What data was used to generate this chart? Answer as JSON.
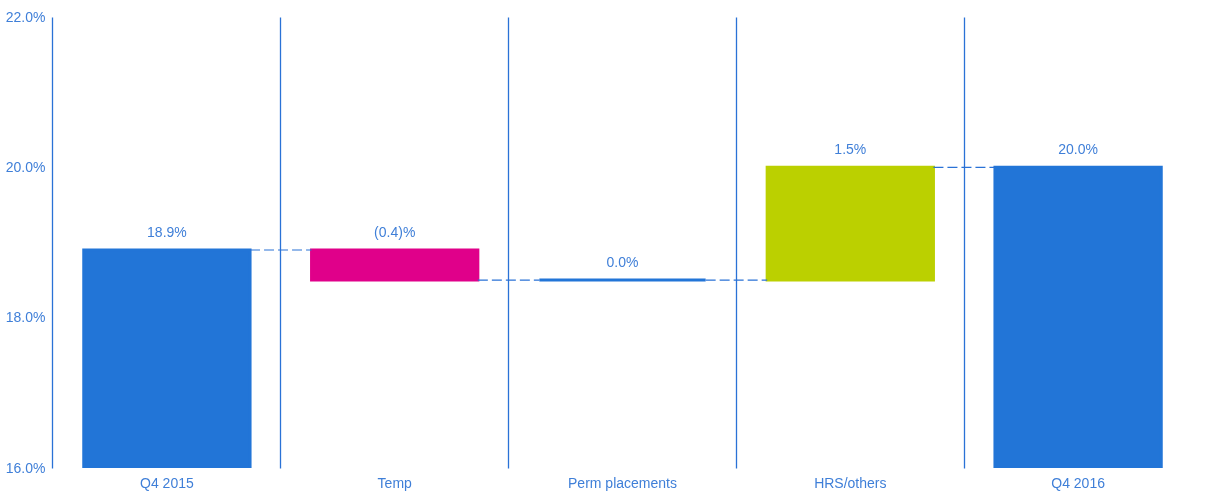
{
  "chart_data": {
    "type": "bar",
    "categories": [
      "Q4 2015",
      "Temp",
      "Perm placements",
      "HRS/others",
      "Q4 2016"
    ],
    "values": [
      18.9,
      -0.4,
      0.0,
      1.5,
      20.0
    ],
    "base": [
      null,
      18.9,
      18.5,
      18.5,
      null
    ],
    "colors": [
      "#2275d7",
      "#e0008a",
      "#2275d7",
      "#bbd000",
      "#2275d7"
    ],
    "value_labels": [
      "18.9%",
      "(0.4)%",
      "0.0%",
      "1.5%",
      "20.0%"
    ],
    "ylim": [
      16,
      22
    ],
    "yticks": [
      {
        "value": 16,
        "label": "16.0%"
      },
      {
        "value": 18,
        "label": "18.0%"
      },
      {
        "value": 20,
        "label": "20.0%"
      },
      {
        "value": 22,
        "label": "22.0%"
      }
    ],
    "grid": "x"
  }
}
